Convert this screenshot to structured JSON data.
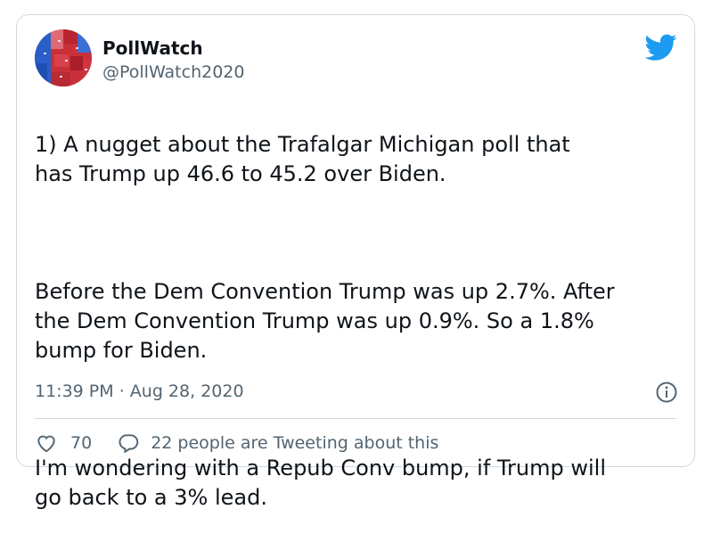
{
  "user": {
    "name": "PollWatch",
    "handle": "@PollWatch2020"
  },
  "tweet": {
    "paragraphs": [
      "1)  A nugget about the Trafalgar Michigan poll that\nhas Trump up 46.6 to 45.2 over Biden.",
      "Before the Dem Convention Trump was up 2.7%. After\nthe Dem Convention Trump was up 0.9%. So a 1.8%\nbump for Biden.",
      "I'm wondering with a Repub Conv bump, if Trump will\ngo back to a 3% lead."
    ],
    "time": "11:39 PM",
    "separator": "·",
    "date": "Aug 28, 2020"
  },
  "engagement": {
    "likes": "70",
    "conversation": "22 people are Tweeting about this"
  },
  "icons": {
    "brand": "twitter-bird-icon",
    "info": "info-icon",
    "like": "heart-icon",
    "reply": "speech-bubble-icon"
  },
  "colors": {
    "twitter_blue": "#1d9bf0",
    "text": "#0f1419",
    "secondary": "#536471",
    "border": "#cfd9de"
  }
}
